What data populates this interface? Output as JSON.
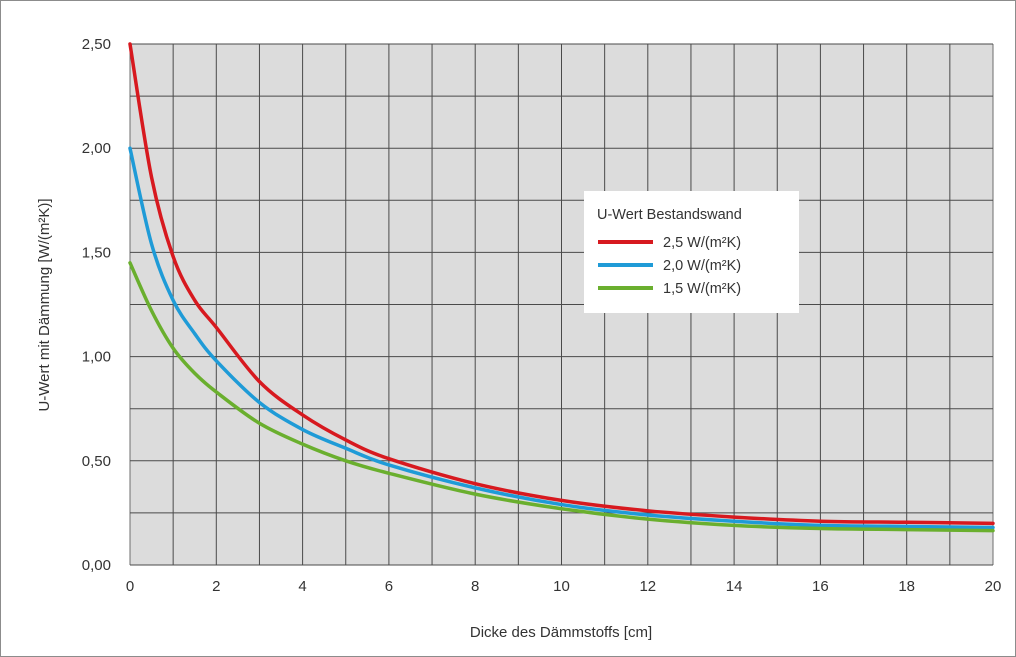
{
  "chart_data": {
    "type": "line",
    "title": "",
    "xlabel": "Dicke des Dämmstoffs [cm]",
    "ylabel": "U-Wert mit Dämmung [W/(m²K)]",
    "xlim": [
      0,
      20
    ],
    "ylim": [
      0,
      2.5
    ],
    "x_ticks": [
      "0",
      "2",
      "4",
      "6",
      "8",
      "10",
      "12",
      "14",
      "16",
      "18",
      "20"
    ],
    "y_ticks": [
      "0,00",
      "0,50",
      "1,00",
      "1,50",
      "2,00",
      "2,50"
    ],
    "grid": true,
    "plot_background": "#dcdcdc",
    "legend": {
      "title": "U-Wert Bestandswand",
      "placement": "center-right"
    },
    "series": [
      {
        "name": "2,5 W/(m²K)",
        "color": "#d7191f",
        "x": [
          0,
          0.5,
          1,
          1.5,
          2,
          3,
          4,
          5,
          6,
          8,
          10,
          12,
          14,
          16,
          18,
          20
        ],
        "y": [
          2.5,
          1.86,
          1.48,
          1.27,
          1.14,
          0.88,
          0.72,
          0.6,
          0.51,
          0.39,
          0.31,
          0.26,
          0.23,
          0.21,
          0.205,
          0.2
        ]
      },
      {
        "name": "2,0 W/(m²K)",
        "color": "#1f9bd7",
        "x": [
          0,
          0.5,
          1,
          1.5,
          2,
          3,
          4,
          5,
          6,
          8,
          10,
          12,
          14,
          16,
          18,
          20
        ],
        "y": [
          2.0,
          1.54,
          1.27,
          1.11,
          0.98,
          0.78,
          0.65,
          0.56,
          0.48,
          0.37,
          0.29,
          0.24,
          0.21,
          0.19,
          0.185,
          0.18
        ]
      },
      {
        "name": "1,5 W/(m²K)",
        "color": "#6aaf2e",
        "x": [
          0,
          0.5,
          1,
          1.5,
          2,
          3,
          4,
          5,
          6,
          8,
          10,
          12,
          14,
          16,
          18,
          20
        ],
        "y": [
          1.45,
          1.22,
          1.04,
          0.92,
          0.83,
          0.68,
          0.58,
          0.5,
          0.44,
          0.34,
          0.27,
          0.22,
          0.19,
          0.175,
          0.17,
          0.165
        ]
      }
    ]
  }
}
